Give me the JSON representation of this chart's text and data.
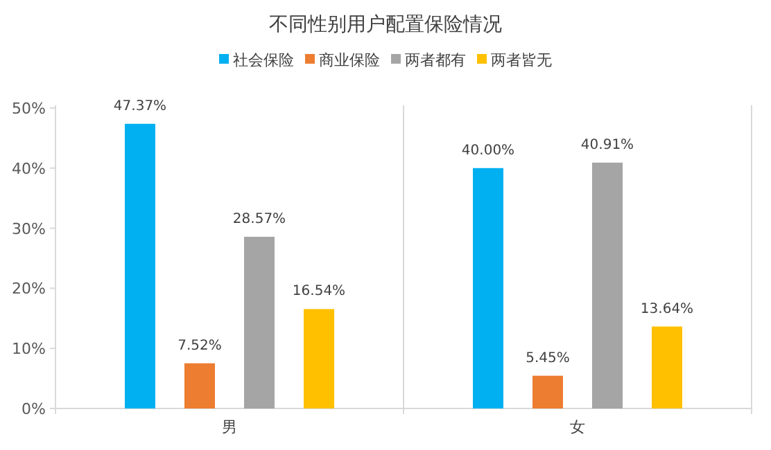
{
  "chart_data": {
    "type": "bar",
    "title": "不同性别用户配置保险情况",
    "categories": [
      "男",
      "女"
    ],
    "series": [
      {
        "name": "社会保险",
        "color": "#00b0f0",
        "values": [
          47.37,
          40.0
        ]
      },
      {
        "name": "商业保险",
        "color": "#ed7d31",
        "values": [
          7.52,
          5.45
        ]
      },
      {
        "name": "两者都有",
        "color": "#a5a5a5",
        "values": [
          28.57,
          40.91
        ]
      },
      {
        "name": "两者皆无",
        "color": "#ffc000",
        "values": [
          16.54,
          13.64
        ]
      }
    ],
    "ylim": [
      0,
      50
    ],
    "yticks": [
      {
        "value": 0,
        "label": "0%"
      },
      {
        "value": 10,
        "label": "10%"
      },
      {
        "value": 20,
        "label": "20%"
      },
      {
        "value": 30,
        "label": "30%"
      },
      {
        "value": 40,
        "label": "40%"
      },
      {
        "value": 50,
        "label": "50%"
      }
    ],
    "value_labels": [
      [
        "47.37%",
        "40.00%"
      ],
      [
        "7.52%",
        "5.45%"
      ],
      [
        "28.57%",
        "40.91%"
      ],
      [
        "16.54%",
        "13.64%"
      ]
    ],
    "legend": "top",
    "grid": false
  }
}
